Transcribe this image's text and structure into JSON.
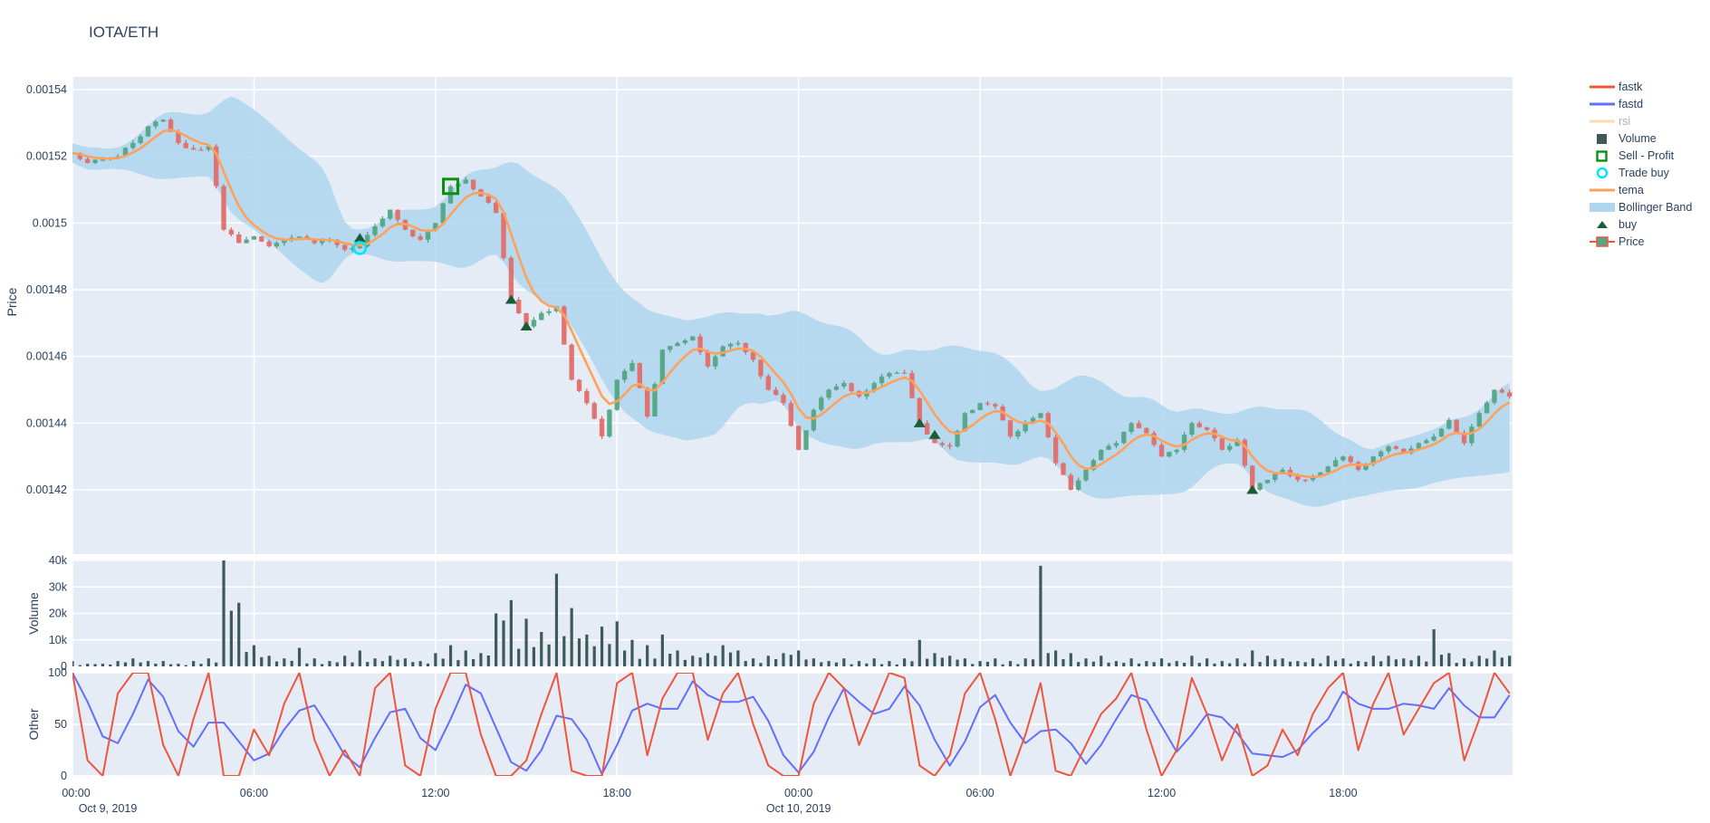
{
  "title": "IOTA/ETH",
  "colors": {
    "plot_bg": "#E5ECF6",
    "grid": "#ffffff",
    "text": "#2a3f5f",
    "faded_text": "#a8aeb9",
    "fastk": "#EF553B",
    "fastd": "#636EFA",
    "rsi_faded": "#ffd9b0",
    "volume_bar": "#3d5a57",
    "sell_profit": "#0b8e0b",
    "trade_buy": "#00e5ff",
    "tema": "#FFA15A",
    "bollinger": "#aed6ef",
    "buy": "#1a5c38",
    "candle_up": "#3D9970",
    "candle_up_fill": "#55a787",
    "candle_down": "#d9534f",
    "candle_down_fill": "#e0706d"
  },
  "legend": {
    "items": [
      {
        "label": "fastk",
        "swatch": "line",
        "color": "#EF553B",
        "faded": false
      },
      {
        "label": "fastd",
        "swatch": "line",
        "color": "#636EFA",
        "faded": false
      },
      {
        "label": "rsi",
        "swatch": "line",
        "color": "#ffd9b0",
        "faded": true
      },
      {
        "label": "Volume",
        "swatch": "square",
        "color": "#3d5a57",
        "faded": false
      },
      {
        "label": "Sell - Profit",
        "swatch": "open-square",
        "color": "#0b8e0b",
        "faded": false
      },
      {
        "label": "Trade buy",
        "swatch": "open-circle",
        "color": "#00e5ff",
        "faded": false
      },
      {
        "label": "tema",
        "swatch": "line",
        "color": "#FFA15A",
        "faded": false
      },
      {
        "label": "Bollinger Band",
        "swatch": "band",
        "color": "#aed6ef",
        "faded": false
      },
      {
        "label": "buy",
        "swatch": "triangle",
        "color": "#1a5c38",
        "faded": false
      },
      {
        "label": "Price",
        "swatch": "candle",
        "color": "#3D9970",
        "faded": false
      }
    ]
  },
  "axes": {
    "y_price": {
      "title": "Price",
      "tick_labels": [
        "0.00154",
        "0.00152",
        "0.0015",
        "0.00148",
        "0.00146",
        "0.00144",
        "0.00142"
      ],
      "tick_values": [
        0.00154,
        0.00152,
        0.0015,
        0.00148,
        0.00146,
        0.00144,
        0.00142
      ]
    },
    "y_volume": {
      "title": "Volume",
      "tick_labels": [
        "40k",
        "30k",
        "20k",
        "10k",
        "0"
      ],
      "tick_values": [
        40000,
        30000,
        20000,
        10000,
        0
      ]
    },
    "y_other": {
      "title": "Other",
      "tick_labels": [
        "100",
        "50",
        "0"
      ],
      "tick_values": [
        100,
        50,
        0
      ]
    },
    "x": {
      "ticks": [
        {
          "h": 0,
          "label": "00:00",
          "date": "Oct 9, 2019"
        },
        {
          "h": 6,
          "label": "06:00"
        },
        {
          "h": 12,
          "label": "12:00"
        },
        {
          "h": 18,
          "label": "18:00"
        },
        {
          "h": 24,
          "label": "00:00",
          "date": "Oct 10, 2019"
        },
        {
          "h": 30,
          "label": "06:00"
        },
        {
          "h": 36,
          "label": "12:00"
        },
        {
          "h": 42,
          "label": "18:00"
        }
      ]
    }
  },
  "chart_data": [
    {
      "type": "candlestick",
      "panel": "price",
      "x_unit": "hours since Oct 9, 2019 00:00",
      "x_start": 0,
      "x_step": 0.5,
      "ylabel": "Price",
      "ylim": [
        0.0014007,
        0.0015438
      ],
      "close": [
        0.001521,
        0.001518,
        0.001519,
        0.00152,
        0.001524,
        0.001529,
        0.001531,
        0.001524,
        0.001522,
        0.001523,
        0.001498,
        0.001494,
        0.001496,
        0.001493,
        0.001495,
        0.001496,
        0.001494,
        0.001495,
        0.001492,
        0.001493,
        0.001499,
        0.001504,
        0.001498,
        0.001495,
        0.0015,
        0.001511,
        0.001513,
        0.001508,
        0.001503,
        0.001477,
        0.001469,
        0.001473,
        0.001475,
        0.001453,
        0.001446,
        0.001436,
        0.001453,
        0.001458,
        0.001442,
        0.001462,
        0.001464,
        0.001466,
        0.001457,
        0.001463,
        0.001464,
        0.001459,
        0.00145,
        0.001446,
        0.001432,
        0.001444,
        0.00145,
        0.001452,
        0.001448,
        0.001452,
        0.001455,
        0.001455,
        0.00144,
        0.001434,
        0.001433,
        0.001443,
        0.001446,
        0.001445,
        0.001436,
        0.00144,
        0.001443,
        0.001428,
        0.00142,
        0.001426,
        0.001432,
        0.001434,
        0.00144,
        0.001437,
        0.00143,
        0.001432,
        0.00144,
        0.001438,
        0.001432,
        0.001435,
        0.00142,
        0.001423,
        0.001426,
        0.001423,
        0.001424,
        0.001427,
        0.00143,
        0.001426,
        0.00143,
        0.001433,
        0.001431,
        0.001434,
        0.001436,
        0.001441,
        0.001434,
        0.001443,
        0.00145,
        0.001448
      ],
      "overlays": [
        {
          "name": "tema",
          "derived": "double EMA smoothing of close",
          "color": "#FFA15A"
        },
        {
          "name": "Bollinger Band",
          "derived": "rolling mean of close ± 2 rolling std",
          "color": "#aed6ef"
        }
      ],
      "markers": {
        "sell_profit": [
          {
            "h": 12.5,
            "price": 0.001511
          }
        ],
        "trade_buy": [
          {
            "h": 9.5,
            "price": 0.0014925
          }
        ],
        "buy": [
          {
            "h": 9.5,
            "price": 0.0014955
          },
          {
            "h": 14.5,
            "price": 0.001477
          },
          {
            "h": 15.0,
            "price": 0.001469
          },
          {
            "h": 28.0,
            "price": 0.00144
          },
          {
            "h": 28.5,
            "price": 0.0014365
          },
          {
            "h": 39.0,
            "price": 0.00142
          }
        ]
      }
    },
    {
      "type": "bar",
      "panel": "volume",
      "x_start": 0,
      "x_step": 0.5,
      "ylabel": "Volume",
      "ylim": [
        0,
        40300
      ],
      "values_k": [
        2,
        1,
        1,
        2,
        3,
        2,
        2,
        1,
        2,
        3,
        40,
        24,
        8,
        4,
        3,
        7,
        3,
        2,
        4,
        6,
        3,
        4,
        3,
        2,
        5,
        8,
        6,
        5,
        20,
        25,
        18,
        13,
        35,
        22,
        12,
        15,
        17,
        10,
        8,
        12,
        6,
        4,
        5,
        8,
        6,
        3,
        4,
        5,
        6,
        3,
        2,
        3,
        2,
        3,
        2,
        3,
        10,
        5,
        4,
        3,
        2,
        3,
        2,
        3,
        38,
        6,
        5,
        3,
        4,
        2,
        3,
        2,
        3,
        2,
        4,
        3,
        2,
        3,
        6,
        4,
        3,
        2,
        3,
        4,
        3,
        2,
        4,
        4,
        3,
        4,
        14,
        5,
        3,
        4,
        6,
        4
      ]
    },
    {
      "type": "line",
      "panel": "other",
      "x_start": 0,
      "x_step": 0.5,
      "ylabel": "Other",
      "ylim": [
        0,
        100
      ],
      "series": [
        {
          "name": "fastk",
          "color": "#EF553B",
          "values": [
            100,
            15,
            0,
            80,
            100,
            100,
            30,
            0,
            55,
            100,
            0,
            0,
            45,
            20,
            70,
            100,
            35,
            0,
            25,
            0,
            85,
            100,
            10,
            0,
            65,
            100,
            100,
            40,
            0,
            0,
            15,
            60,
            100,
            5,
            0,
            0,
            90,
            100,
            20,
            75,
            100,
            100,
            35,
            80,
            100,
            50,
            10,
            0,
            0,
            70,
            100,
            85,
            30,
            65,
            100,
            95,
            10,
            0,
            20,
            80,
            100,
            55,
            0,
            40,
            90,
            5,
            0,
            30,
            60,
            75,
            100,
            45,
            0,
            25,
            95,
            60,
            15,
            50,
            0,
            10,
            45,
            20,
            60,
            85,
            100,
            25,
            70,
            100,
            40,
            65,
            90,
            100,
            15,
            55,
            100,
            80
          ]
        },
        {
          "name": "fastd",
          "color": "#636EFA",
          "derived": "3-point moving average of fastk"
        }
      ]
    }
  ]
}
